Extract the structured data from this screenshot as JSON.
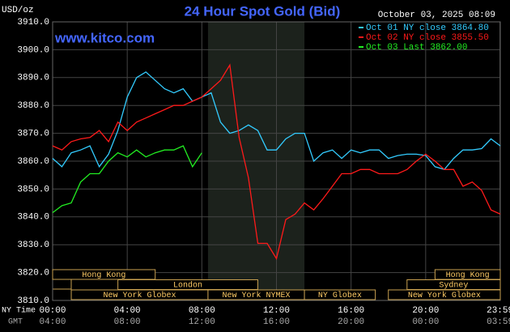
{
  "chart_data": {
    "type": "line",
    "title": "24 Hour Spot Gold (Bid)",
    "unit_label": "USD/oz",
    "timestamp": "October 03, 2025 08:09",
    "site": "www.kitco.com",
    "x_row_labels": [
      "NY Time",
      "GMT"
    ],
    "xlim": [
      0,
      24
    ],
    "xticks": [
      {
        "value": 0,
        "label": "00:00"
      },
      {
        "value": 4,
        "label": "04:00"
      },
      {
        "value": 8,
        "label": "08:00"
      },
      {
        "value": 12,
        "label": "12:00"
      },
      {
        "value": 16,
        "label": "16:00"
      },
      {
        "value": 20,
        "label": "20:00"
      },
      {
        "value": 23.983,
        "label": "23:59"
      }
    ],
    "gmt_labels": [
      "04:00",
      "08:00",
      "12:00",
      "16:00",
      "20:00",
      "00:00",
      "03:59"
    ],
    "ylim": [
      3810,
      3910
    ],
    "yticks": [
      {
        "value": 3810,
        "label": "3810.0"
      },
      {
        "value": 3820,
        "label": "3820.0"
      },
      {
        "value": 3830,
        "label": "3830.0"
      },
      {
        "value": 3840,
        "label": "3840.0"
      },
      {
        "value": 3850,
        "label": "3850.0"
      },
      {
        "value": 3860,
        "label": "3860.0"
      },
      {
        "value": 3870,
        "label": "3870.0"
      },
      {
        "value": 3880,
        "label": "3880.0"
      },
      {
        "value": 3890,
        "label": "3890.0"
      },
      {
        "value": 3900,
        "label": "3900.0"
      },
      {
        "value": 3910,
        "label": "3910.0"
      }
    ],
    "grid": true,
    "highlight": [
      8.33,
      13.5
    ],
    "session_rows": [
      [
        {
          "name": "Hong Kong",
          "start": 0,
          "end": 5.5
        },
        {
          "name": "Hong Kong",
          "start": 20.5,
          "end": 24
        }
      ],
      [
        {
          "name": "London",
          "start": 3.5,
          "end": 11
        },
        {
          "name": "Sydney",
          "start": 19,
          "end": 24
        }
      ],
      [
        {
          "name": "New York Globex",
          "start": 1,
          "end": 8.33
        },
        {
          "name": "New York NYMEX",
          "start": 8.33,
          "end": 13.5
        },
        {
          "name": "NY Globex",
          "start": 13.5,
          "end": 17.3
        },
        {
          "name": "New York Globex",
          "start": 18,
          "end": 24
        }
      ]
    ],
    "x": [
      0,
      0.5,
      1,
      1.5,
      2,
      2.5,
      3,
      3.5,
      4,
      4.5,
      5,
      5.5,
      6,
      6.5,
      7,
      7.5,
      8,
      8.5,
      9,
      9.5,
      10,
      10.5,
      11,
      11.5,
      12,
      12.5,
      13,
      13.5,
      14,
      14.5,
      15,
      15.5,
      16,
      16.5,
      17,
      17.5,
      18,
      18.5,
      19,
      19.5,
      20,
      20.5,
      21,
      21.5,
      22,
      22.5,
      23,
      23.5,
      24
    ],
    "series": [
      {
        "name": "Oct 01 NY close 3864.80",
        "color": "#33ccff",
        "values": [
          3861,
          3858,
          3863,
          3864,
          3865.5,
          3858,
          3862.5,
          3871,
          3883,
          3890,
          3892,
          3889,
          3886,
          3884.5,
          3886,
          3881.5,
          3883,
          3884.5,
          3874,
          3870,
          3871,
          3873,
          3871,
          3864,
          3864,
          3868,
          3870,
          3870,
          3860,
          3863,
          3864,
          3861,
          3864,
          3863,
          3864,
          3864,
          3861,
          3862,
          3862.5,
          3862.5,
          3862,
          3858,
          3857,
          3861,
          3864,
          3864,
          3864.5,
          3868,
          3865.5
        ]
      },
      {
        "name": "Oct 02 NY close 3855.50",
        "color": "#ff1a1a",
        "values": [
          3865.5,
          3864,
          3867,
          3868,
          3868.5,
          3871,
          3867,
          3874,
          3871,
          3874,
          3875.5,
          3877,
          3878.5,
          3880,
          3880,
          3881.5,
          3883,
          3886,
          3889,
          3894.5,
          3868.5,
          3854,
          3830.5,
          3830.5,
          3825,
          3839,
          3841,
          3845,
          3842.5,
          3846.5,
          3851,
          3855.5,
          3855.5,
          3857,
          3857,
          3855.5,
          3855.5,
          3855.5,
          3857,
          3860,
          3862.5,
          3860,
          3857,
          3857,
          3851,
          3852.5,
          3849.5,
          3842.5,
          3841
        ]
      },
      {
        "name": "Oct 03 Last 3862.00",
        "color": "#22ee22",
        "values": [
          3841.5,
          3844,
          3845,
          3852.5,
          3855.5,
          3855.5,
          3860,
          3863,
          3861.5,
          3864,
          3861.5,
          3863,
          3864,
          3864,
          3865.5,
          3858,
          3863,
          null,
          null,
          null,
          null,
          null,
          null,
          null,
          null,
          null,
          null,
          null,
          null,
          null,
          null,
          null,
          null,
          null,
          null,
          null,
          null,
          null,
          null,
          null,
          null,
          null,
          null,
          null,
          null,
          null,
          null,
          null,
          null
        ]
      }
    ]
  }
}
